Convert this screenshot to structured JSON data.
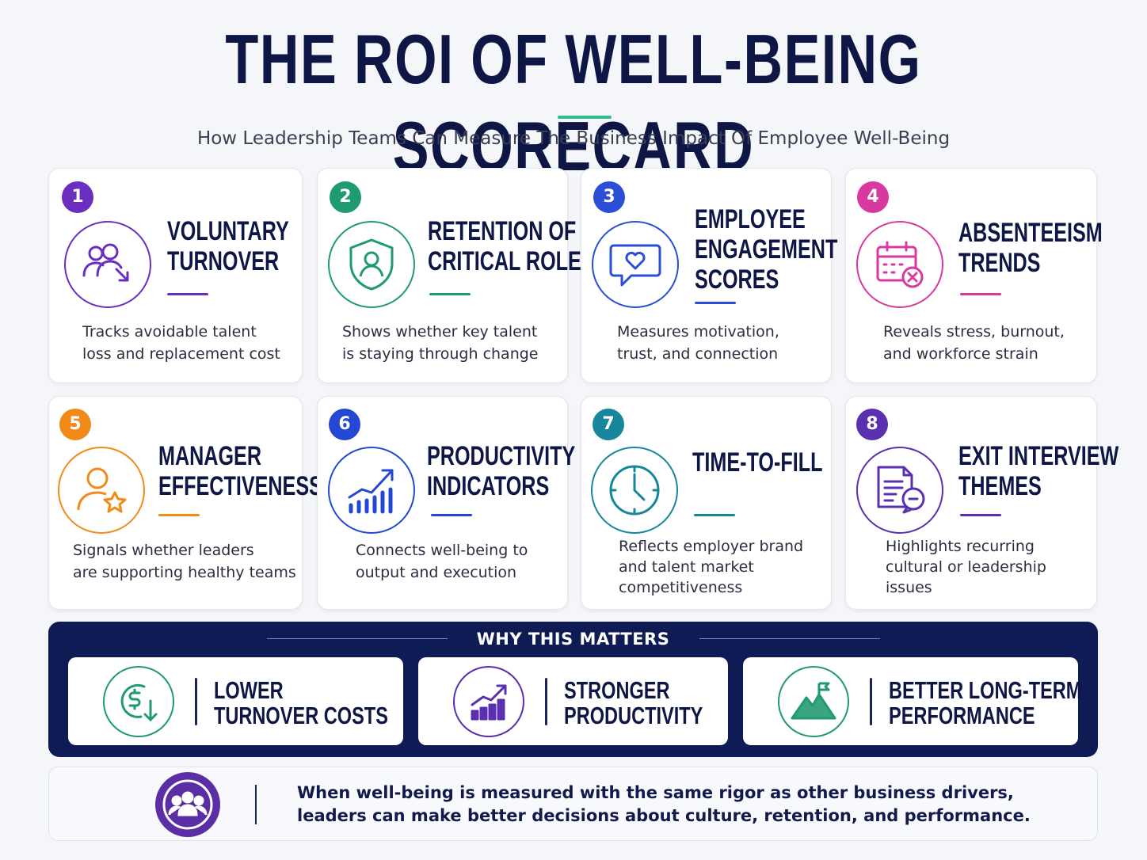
{
  "header": {
    "title": "THE ROI OF WELL-BEING SCORECARD",
    "subtitle": "How Leadership Teams Can Measure The Business Impact Of Employee Well-Being"
  },
  "metrics": [
    {
      "number": "1",
      "title_lines": [
        "VOLUNTARY",
        "TURNOVER",
        ""
      ],
      "desc_lines": [
        "Tracks avoidable talent",
        "loss and replacement cost",
        ""
      ],
      "color": "#6a2fc1",
      "icon": "people-turnover-icon"
    },
    {
      "number": "2",
      "title_lines": [
        "RETENTION OF",
        "CRITICAL ROLES",
        ""
      ],
      "desc_lines": [
        "Shows whether key talent",
        "is staying through change",
        ""
      ],
      "color": "#1f9a72",
      "icon": "shield-person-icon"
    },
    {
      "number": "3",
      "title_lines": [
        "EMPLOYEE",
        "ENGAGEMENT",
        "SCORES"
      ],
      "desc_lines": [
        "Measures motivation,",
        "trust, and connection",
        ""
      ],
      "color": "#2a4fd6",
      "icon": "heart-chat-icon"
    },
    {
      "number": "4",
      "title_lines": [
        "ABSENTEEISM",
        "TRENDS",
        ""
      ],
      "desc_lines": [
        "Reveals stress, burnout,",
        "and workforce strain",
        ""
      ],
      "color": "#d8399e",
      "icon": "calendar-x-icon"
    },
    {
      "number": "5",
      "title_lines": [
        "MANAGER",
        "EFFECTIVENESS",
        ""
      ],
      "desc_lines": [
        "Signals whether leaders",
        "are supporting healthy teams",
        ""
      ],
      "color": "#f28a1a",
      "icon": "person-star-icon"
    },
    {
      "number": "6",
      "title_lines": [
        "PRODUCTIVITY",
        "INDICATORS",
        ""
      ],
      "desc_lines": [
        "Connects well-being to",
        "output and execution",
        ""
      ],
      "color": "#2248d4",
      "icon": "growth-chart-icon"
    },
    {
      "number": "7",
      "title_lines": [
        "TIME-TO-FILL",
        "",
        ""
      ],
      "desc_lines": [
        "Reflects employer brand",
        "and talent market",
        "competitiveness"
      ],
      "color": "#16879a",
      "icon": "clock-icon"
    },
    {
      "number": "8",
      "title_lines": [
        "EXIT INTERVIEW",
        "THEMES",
        ""
      ],
      "desc_lines": [
        "Highlights recurring",
        "cultural or leadership",
        "issues"
      ],
      "color": "#5a2fb0",
      "icon": "document-chat-icon"
    }
  ],
  "why": {
    "title": "WHY THIS MATTERS",
    "items": [
      {
        "lines": [
          "LOWER",
          "TURNOVER COSTS"
        ],
        "color": "#1f9a72",
        "icon": "dollar-down-icon"
      },
      {
        "lines": [
          "STRONGER",
          "PRODUCTIVITY"
        ],
        "color": "#5a2fb0",
        "icon": "bar-growth-icon"
      },
      {
        "lines": [
          "BETTER LONG-TERM",
          "PERFORMANCE"
        ],
        "color": "#1f9a72",
        "icon": "mountain-flag-icon"
      }
    ]
  },
  "footer": {
    "lines": [
      "When well-being is measured with the same rigor as other business drivers,",
      "leaders can make better decisions about culture, retention, and performance."
    ],
    "icon": "team-icon",
    "color": "#5b2ea6"
  }
}
